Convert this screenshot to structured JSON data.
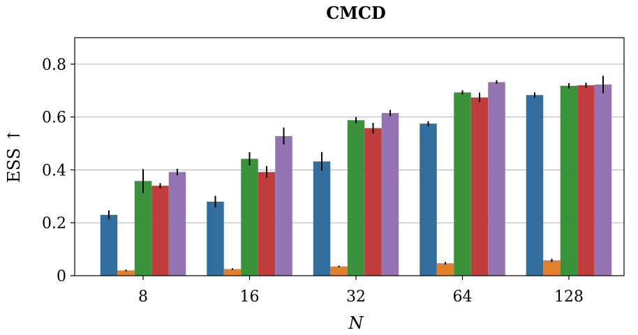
{
  "chart_data": {
    "type": "bar",
    "title": "CMCD",
    "xlabel": "N",
    "ylabel": "ESS ↑",
    "categories": [
      "8",
      "16",
      "32",
      "64",
      "128"
    ],
    "ylim": [
      0,
      0.9
    ],
    "yticks": [
      0,
      0.2,
      0.4,
      0.6,
      0.8
    ],
    "ytick_labels": [
      "0",
      "0.2",
      "0.4",
      "0.6",
      "0.8"
    ],
    "grid": true,
    "series": [
      {
        "color": "#336f9e",
        "values": [
          0.23,
          0.28,
          0.432,
          0.575,
          0.683
        ],
        "errors": [
          0.017,
          0.022,
          0.035,
          0.009,
          0.01
        ]
      },
      {
        "color": "#e07f2e",
        "values": [
          0.02,
          0.025,
          0.035,
          0.047,
          0.058
        ],
        "errors": [
          0.003,
          0.003,
          0.003,
          0.005,
          0.006
        ]
      },
      {
        "color": "#3a923a",
        "values": [
          0.358,
          0.442,
          0.588,
          0.693,
          0.718
        ],
        "errors": [
          0.045,
          0.025,
          0.012,
          0.008,
          0.01
        ]
      },
      {
        "color": "#c03d3e",
        "values": [
          0.34,
          0.392,
          0.558,
          0.674,
          0.72
        ],
        "errors": [
          0.01,
          0.022,
          0.02,
          0.018,
          0.01
        ]
      },
      {
        "color": "#9473b3",
        "values": [
          0.392,
          0.528,
          0.615,
          0.732,
          0.723
        ],
        "errors": [
          0.012,
          0.032,
          0.012,
          0.007,
          0.033
        ]
      }
    ]
  }
}
